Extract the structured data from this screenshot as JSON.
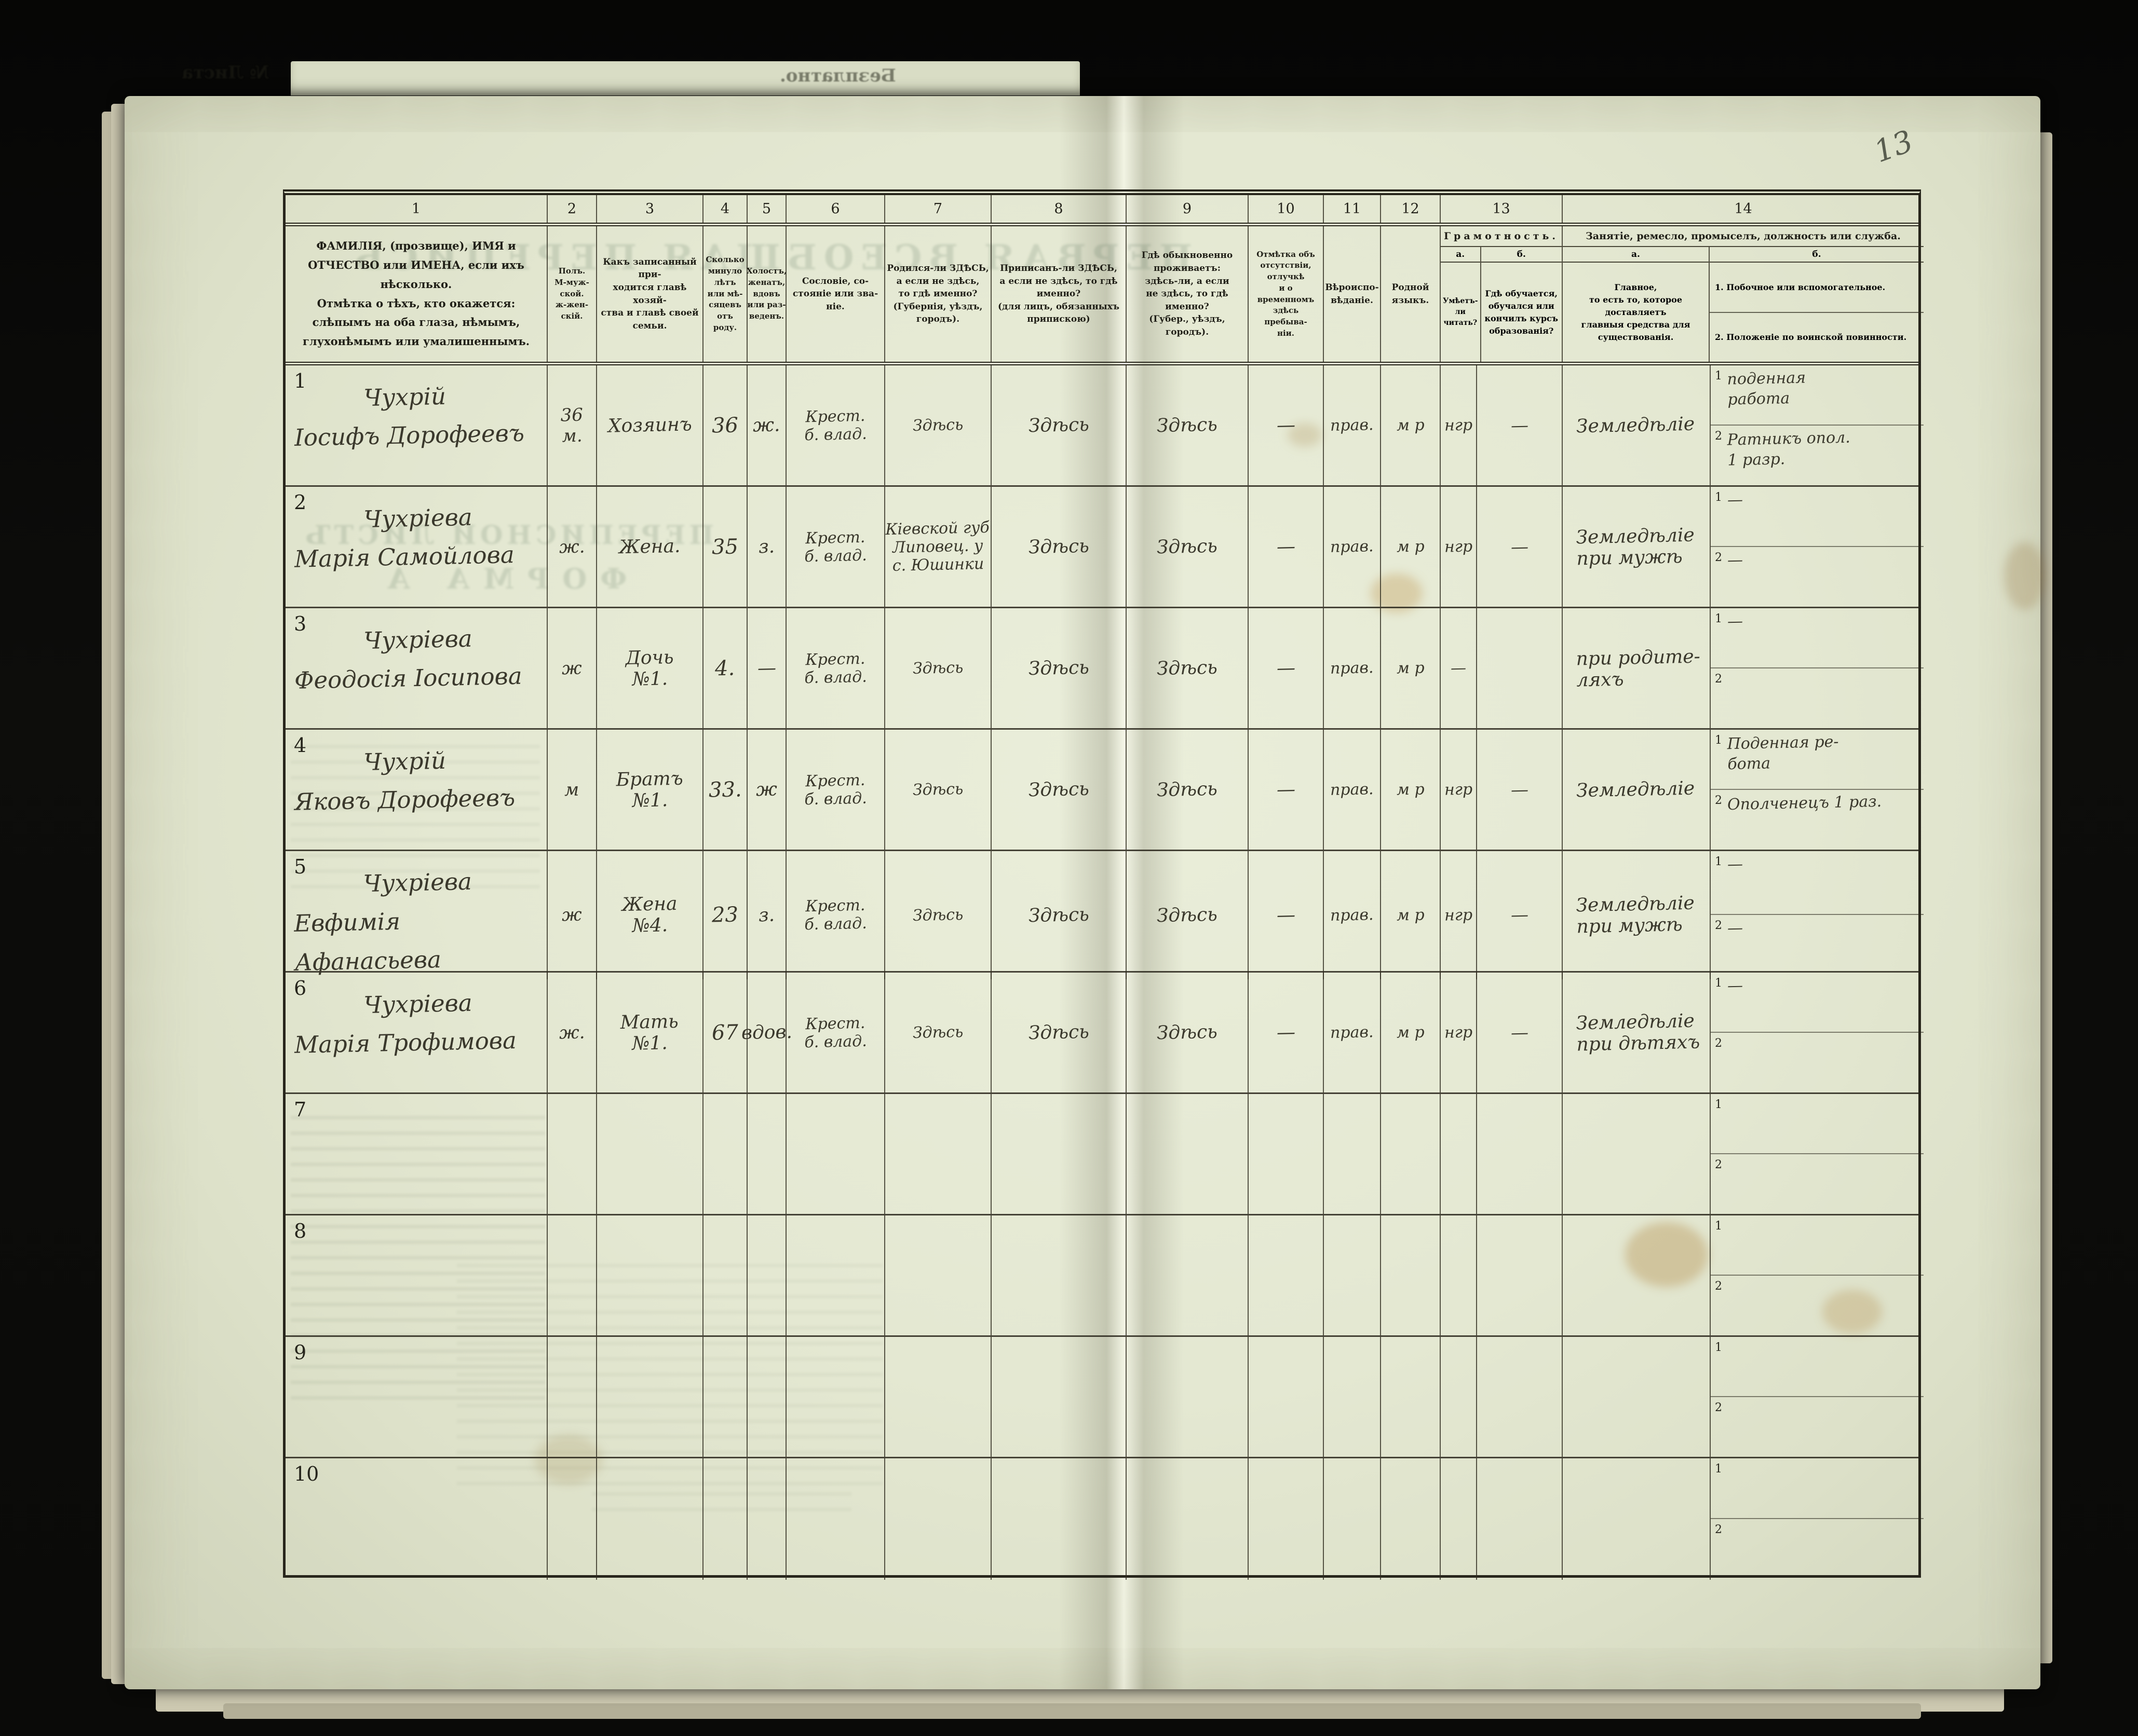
{
  "page": {
    "number": "13",
    "bleed_free_note": "Безплатно.",
    "bleed_sheet_label": "№ Листа",
    "bleed_title": "ПЕРВАЯ ВСЕОБЩАЯ ПЕРЕПИСЬ",
    "bleed_subtitle": "ПЕРЕПИСНОЙ ЛИСТЪ",
    "bleed_form": "ФОРМА А"
  },
  "header": {
    "nums": [
      "1",
      "2",
      "3",
      "4",
      "5",
      "6",
      "7",
      "8",
      "9",
      "10",
      "11",
      "12",
      "13",
      "14"
    ],
    "c1": "ФАМИЛІЯ, (прозвище), ИМЯ и ОТЧЕСТВО или ИМЕНА, если ихъ нѣсколько.\nОтмѣтка о тѣхъ, кто окажется: слѣпымъ на оба глаза, нѣмымъ, глухонѣмымъ или умалишеннымъ.",
    "c2": "Полъ.\nМ-муж-\nской.\nж-жен-\nскій.",
    "c3": "Какъ записанный при-\nходится главѣ хозяй-\nства и главѣ своей\nсемьи.",
    "c4": "Сколько\nминуло\nлѣтъ\nили мѣ-\nсяцевъ\nотъ роду.",
    "c5": "Холостъ,\nженатъ,\nвдовъ\nили раз-\nведенъ.",
    "c6": "Сословіе, со-\nстояніе или зва-\nніе.",
    "c7": "Родился-ли ЗДѢСЬ,\nа если не здѣсь,\nто гдѣ именно?\n(Губернія, уѣздъ, городъ).",
    "c8": "Приписанъ-ли ЗДѢСЬ,\nа если не здѣсь, то гдѣ\nименно?\n(для лицъ, обязанныхъ\nприпискою)",
    "c9": "Гдѣ обыкновенно\nпроживаетъ:\nздѣсь-ли, а если\nне здѣсь, то гдѣ\nименно?\n(Губер., уѣздъ, городъ).",
    "c10": "Отмѣтка объ\nотсутствіи, отлучкѣ\nи о временномъ\nздѣсь пребыва-\nніи.",
    "c11": "Вѣроиспо-\nвѣданіе.",
    "c12": "Родной\nязыкъ.",
    "c13": {
      "title": "Грамотность.",
      "a_label": "а.",
      "a_text": "Умѣетъ-\nли\nчитать?",
      "b_label": "б.",
      "b_text": "Гдѣ обучается,\nобучался или\nкончилъ курсъ\nобразованія?"
    },
    "c14": {
      "title": "Занятіе, ремесло, промыселъ, должность или служба.",
      "a_label": "а.",
      "a_text": "Главное,\nто есть то, которое доставляетъ\nглавныя средства для существованія.",
      "b_label": "б.",
      "b1": "1.  Побочное или вспомогательное.",
      "b2": "2.  Положеніе по воинской повинности.",
      "row_nums": [
        "1",
        "2"
      ]
    }
  },
  "rows": [
    {
      "num": "1",
      "c1": "Чухрій\nІосифъ Дорофеевъ",
      "c2": "36\nм.",
      "c3": "Хозяинъ",
      "c4": "36",
      "c5": "ж.",
      "c6": "Крест.\nб. влад.",
      "c7": "Здѣсь",
      "c8": "Здѣсь",
      "c9": "Здѣсь",
      "c10": "—",
      "c11": "прав.",
      "c12": "м р",
      "c13a": "нгр",
      "c13b": "—",
      "c14a": "Земледѣліе",
      "c14b1": "поденная\nработа",
      "c14b2": "Ратникъ опол.\n1 разр."
    },
    {
      "num": "2",
      "c1": "Чухріева\nМарія Самойлова",
      "c2": "ж.",
      "c3": "Жена.",
      "c4": "35",
      "c5": "з.",
      "c6": "Крест.\nб. влад.",
      "c7": "Кіевской губ\nЛиповец. у\nс. Юшинки",
      "c8": "Здѣсь",
      "c9": "Здѣсь",
      "c10": "—",
      "c11": "прав.",
      "c12": "м р",
      "c13a": "нгр",
      "c13b": "—",
      "c14a": "Земледѣліе\nпри мужѣ",
      "c14b1": "—",
      "c14b2": "—"
    },
    {
      "num": "3",
      "c1": "Чухріева\nФеодосія Іосипова",
      "c2": "ж",
      "c3": "Дочь\n№1.",
      "c4": "4.",
      "c5": "—",
      "c6": "Крест.\nб. влад.",
      "c7": "Здѣсь",
      "c8": "Здѣсь",
      "c9": "Здѣсь",
      "c10": "—",
      "c11": "прав.",
      "c12": "м р",
      "c13a": "—",
      "c13b": "",
      "c14a": "при родите-\nляхъ",
      "c14b1": "—",
      "c14b2": ""
    },
    {
      "num": "4",
      "c1": "Чухрій\nЯковъ Дорофеевъ",
      "c2": "м",
      "c3": "Братъ\n№1.",
      "c4": "33.",
      "c5": "ж",
      "c6": "Крест.\nб. влад.",
      "c7": "Здѣсь",
      "c8": "Здѣсь",
      "c9": "Здѣсь",
      "c10": "—",
      "c11": "прав.",
      "c12": "м р",
      "c13a": "нгр",
      "c13b": "—",
      "c14a": "Земледѣліе",
      "c14b1": "Поденная ре-\nбота",
      "c14b2": "Ополченецъ 1 раз."
    },
    {
      "num": "5",
      "c1": "Чухріева\nЕвфимія Афанасьева",
      "c2": "ж",
      "c3": "Жена\n№4.",
      "c4": "23",
      "c5": "з.",
      "c6": "Крест.\nб. влад.",
      "c7": "Здѣсь",
      "c8": "Здѣсь",
      "c9": "Здѣсь",
      "c10": "—",
      "c11": "прав.",
      "c12": "м р",
      "c13a": "нгр",
      "c13b": "—",
      "c14a": "Земледѣліе\nпри мужѣ",
      "c14b1": "—",
      "c14b2": "—"
    },
    {
      "num": "6",
      "c1": "Чухріева\nМарія Трофимова",
      "c2": "ж.",
      "c3": "Мать\n№1.",
      "c4": "67",
      "c5": "вдов.",
      "c6": "Крест.\nб. влад.",
      "c7": "Здѣсь",
      "c8": "Здѣсь",
      "c9": "Здѣсь",
      "c10": "—",
      "c11": "прав.",
      "c12": "м р",
      "c13a": "нгр",
      "c13b": "—",
      "c14a": "Земледѣліе\nпри дѣтяхъ",
      "c14b1": "—",
      "c14b2": ""
    },
    {
      "num": "7",
      "c1": "",
      "c2": "",
      "c3": "",
      "c4": "",
      "c5": "",
      "c6": "",
      "c7": "",
      "c8": "",
      "c9": "",
      "c10": "",
      "c11": "",
      "c12": "",
      "c13a": "",
      "c13b": "",
      "c14a": "",
      "c14b1": "",
      "c14b2": ""
    },
    {
      "num": "8",
      "c1": "",
      "c2": "",
      "c3": "",
      "c4": "",
      "c5": "",
      "c6": "",
      "c7": "",
      "c8": "",
      "c9": "",
      "c10": "",
      "c11": "",
      "c12": "",
      "c13a": "",
      "c13b": "",
      "c14a": "",
      "c14b1": "",
      "c14b2": ""
    },
    {
      "num": "9",
      "c1": "",
      "c2": "",
      "c3": "",
      "c4": "",
      "c5": "",
      "c6": "",
      "c7": "",
      "c8": "",
      "c9": "",
      "c10": "",
      "c11": "",
      "c12": "",
      "c13a": "",
      "c13b": "",
      "c14a": "",
      "c14b1": "",
      "c14b2": ""
    },
    {
      "num": "10",
      "c1": "",
      "c2": "",
      "c3": "",
      "c4": "",
      "c5": "",
      "c6": "",
      "c7": "",
      "c8": "",
      "c9": "",
      "c10": "",
      "c11": "",
      "c12": "",
      "c13a": "",
      "c13b": "",
      "c14a": "",
      "c14b1": "",
      "c14b2": ""
    }
  ]
}
